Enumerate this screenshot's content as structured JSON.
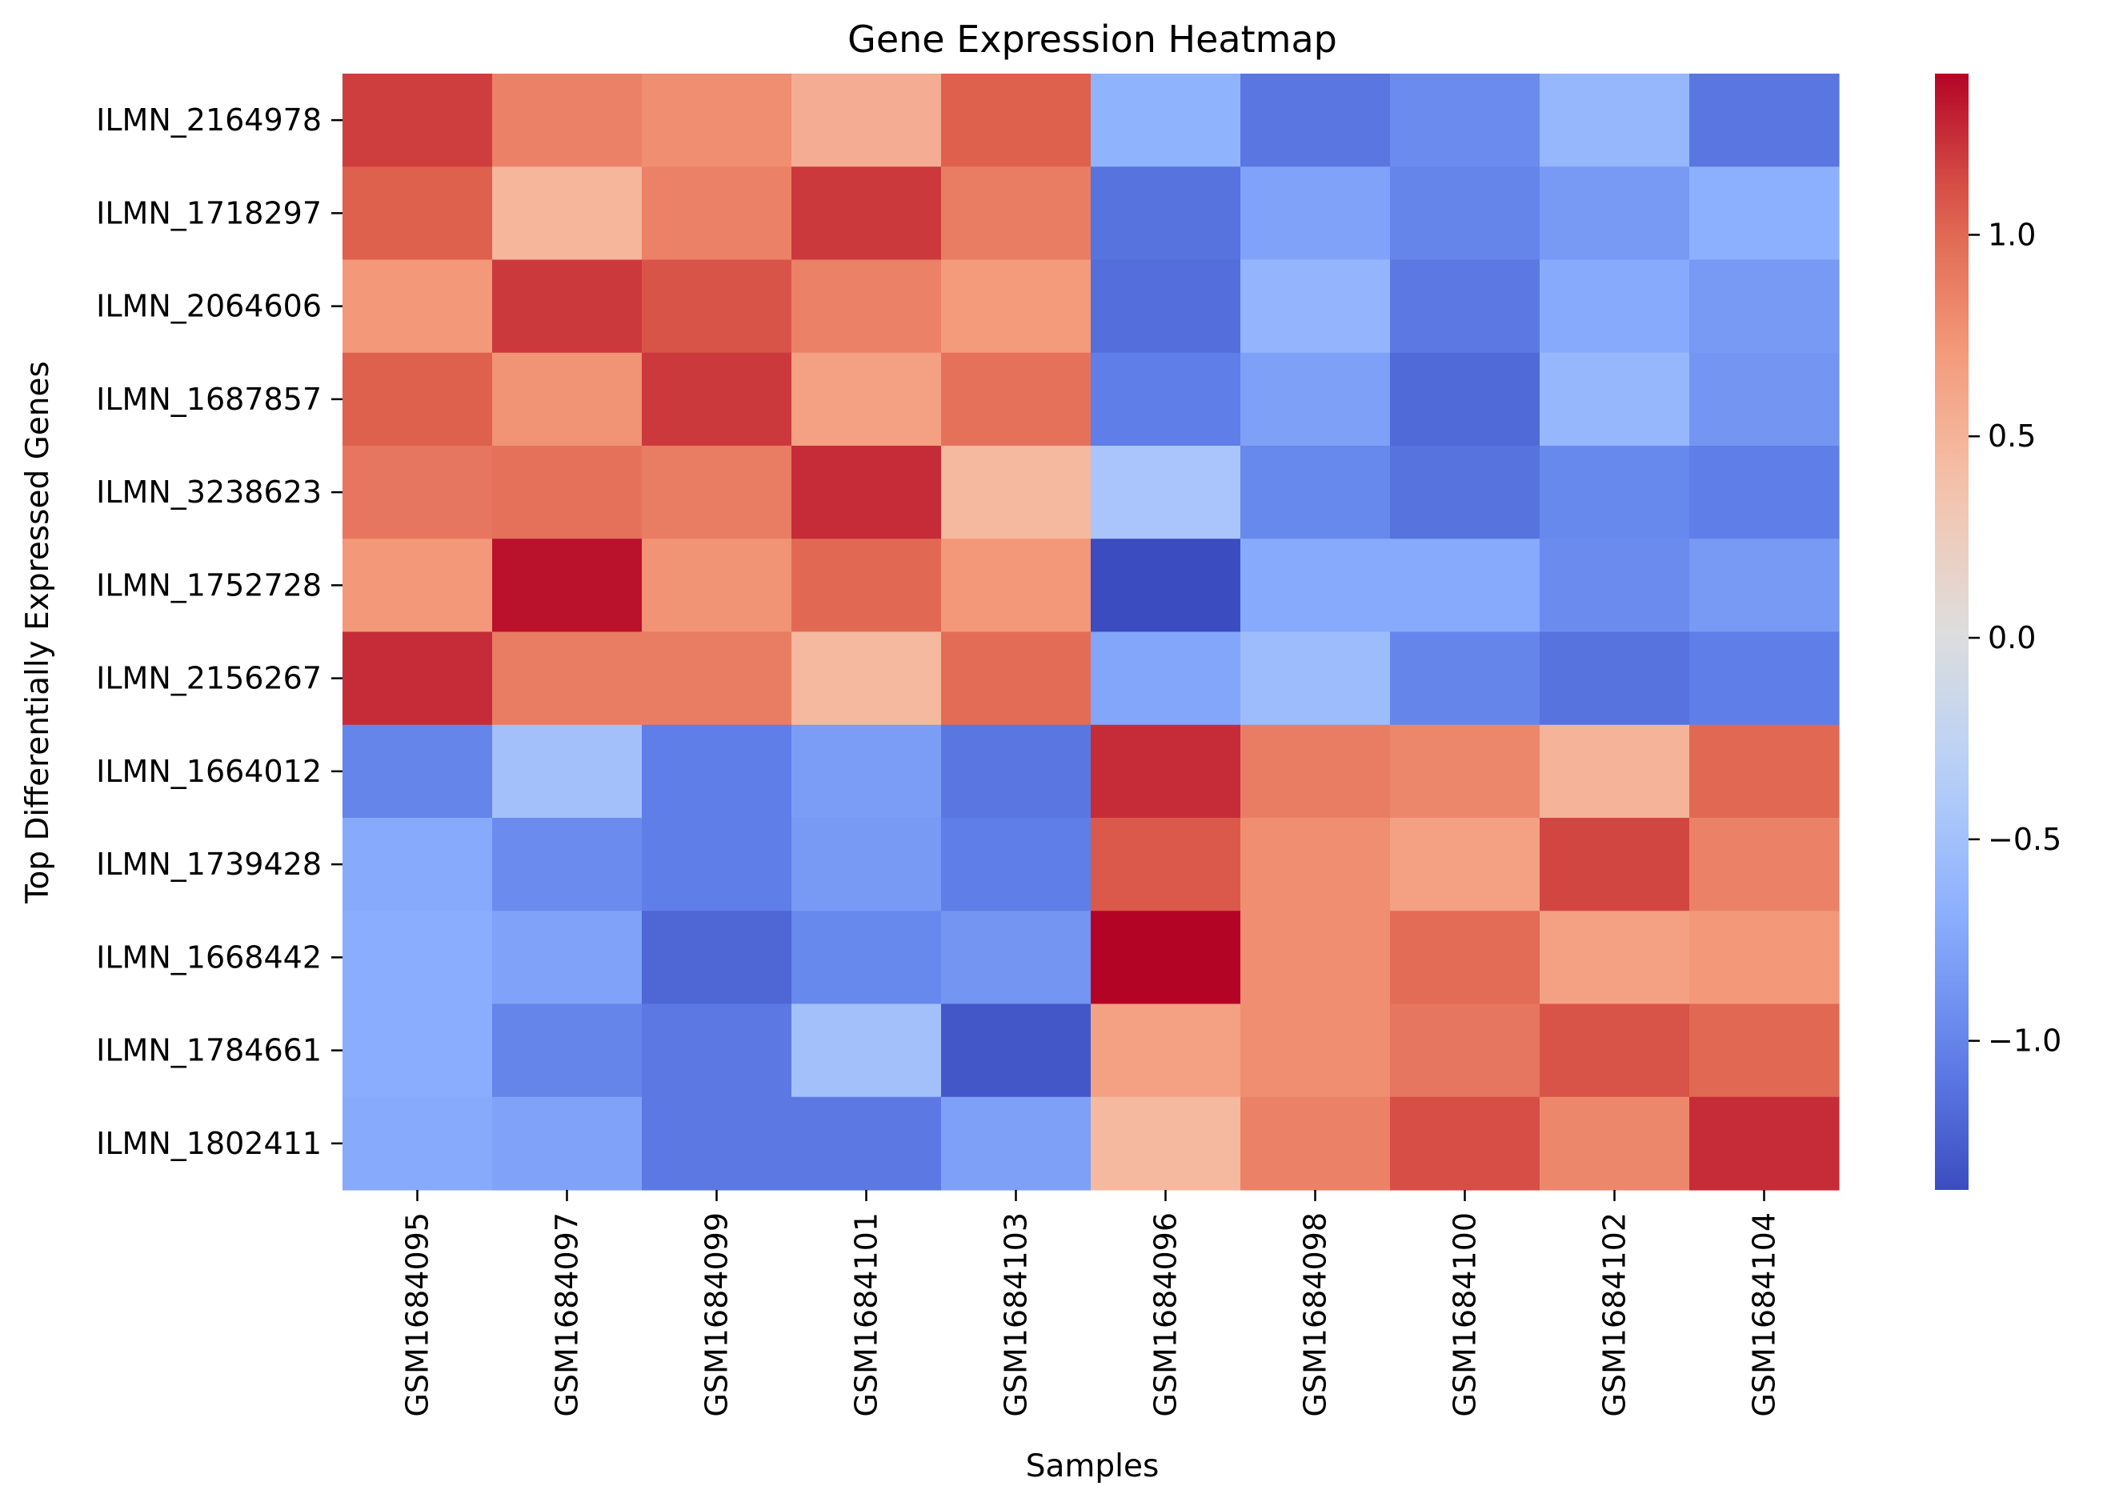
{
  "chart_data": {
    "type": "heatmap",
    "title": "Gene Expression Heatmap",
    "xlabel": "Samples",
    "ylabel": "Top Differentially Expressed Genes",
    "colormap": "coolwarm",
    "vmin": -1.37,
    "vmax": 1.4,
    "colorbar_ticks": [
      {
        "value": 1.0,
        "label": "1.0"
      },
      {
        "value": 0.5,
        "label": "0.5"
      },
      {
        "value": 0.0,
        "label": "0.0"
      },
      {
        "value": -0.5,
        "label": "−0.5"
      },
      {
        "value": -1.0,
        "label": "−1.0"
      }
    ],
    "columns": [
      "GSM1684095",
      "GSM1684097",
      "GSM1684099",
      "GSM1684101",
      "GSM1684103",
      "GSM1684096",
      "GSM1684098",
      "GSM1684100",
      "GSM1684102",
      "GSM1684104"
    ],
    "rows": [
      "ILMN_2164978",
      "ILMN_1718297",
      "ILMN_2064606",
      "ILMN_1687857",
      "ILMN_3238623",
      "ILMN_1752728",
      "ILMN_2156267",
      "ILMN_1664012",
      "ILMN_1739428",
      "ILMN_1668442",
      "ILMN_1784661",
      "ILMN_1802411"
    ],
    "values": [
      [
        1.18,
        0.85,
        0.78,
        0.55,
        1.05,
        -0.65,
        -1.1,
        -0.95,
        -0.6,
        -1.1
      ],
      [
        1.05,
        0.48,
        0.85,
        1.2,
        0.88,
        -1.12,
        -0.78,
        -1.0,
        -0.85,
        -0.68
      ],
      [
        0.72,
        1.2,
        1.1,
        0.85,
        0.7,
        -1.15,
        -0.62,
        -1.08,
        -0.72,
        -0.85
      ],
      [
        1.05,
        0.75,
        1.2,
        0.65,
        0.95,
        -1.05,
        -0.8,
        -1.18,
        -0.6,
        -0.88
      ],
      [
        0.92,
        0.95,
        0.88,
        1.25,
        0.45,
        -0.45,
        -0.98,
        -1.12,
        -0.98,
        -1.05
      ],
      [
        0.72,
        1.35,
        0.75,
        1.0,
        0.72,
        -1.37,
        -0.72,
        -0.72,
        -0.95,
        -0.85
      ],
      [
        1.25,
        0.88,
        0.88,
        0.45,
        0.98,
        -0.75,
        -0.55,
        -1.0,
        -1.12,
        -1.05
      ],
      [
        -1.0,
        -0.5,
        -1.05,
        -0.82,
        -1.1,
        1.25,
        0.88,
        0.82,
        0.5,
        1.0
      ],
      [
        -0.72,
        -0.95,
        -1.05,
        -0.85,
        -1.05,
        1.08,
        0.78,
        0.65,
        1.15,
        0.85
      ],
      [
        -0.7,
        -0.78,
        -1.2,
        -0.98,
        -0.88,
        1.4,
        0.78,
        0.98,
        0.65,
        0.72
      ],
      [
        -0.7,
        -1.0,
        -1.08,
        -0.5,
        -1.3,
        0.65,
        0.78,
        0.92,
        1.1,
        1.0
      ],
      [
        -0.72,
        -0.78,
        -1.08,
        -1.08,
        -0.8,
        0.45,
        0.85,
        1.12,
        0.82,
        1.25
      ]
    ]
  }
}
